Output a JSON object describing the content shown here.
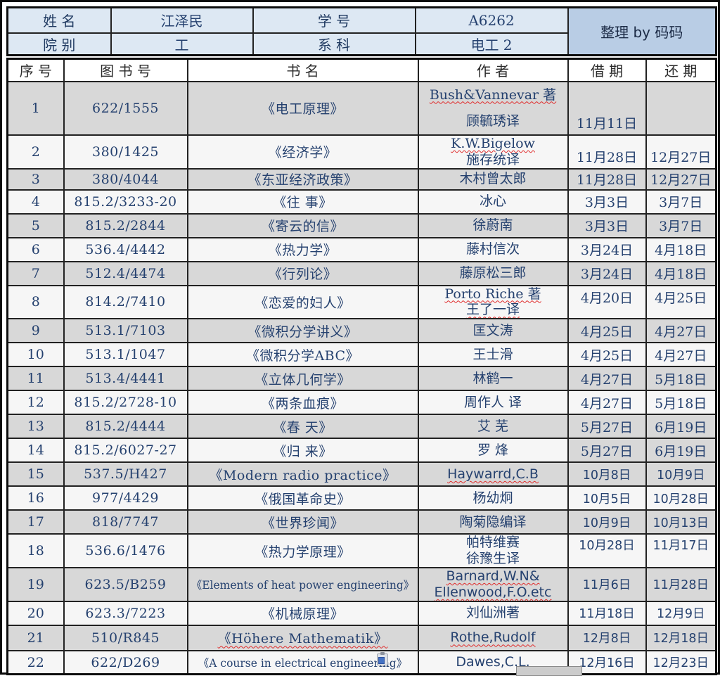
{
  "header": {
    "name_label": "姓 名",
    "name_value": "江泽民",
    "id_label": "学 号",
    "id_value": "A6262",
    "dept_label": "院 别",
    "dept_value": "工",
    "major_label": "系 科",
    "major_value": "电工 2",
    "credit": "整理 by 码码"
  },
  "columns": [
    "序 号",
    "图 书 号",
    "书 名",
    "作 者",
    "借 期",
    "还 期"
  ],
  "rows": [
    {
      "no": "1",
      "book_no": "622/1555",
      "title": "《电工原理》",
      "title_squiggle": false,
      "authors": [
        {
          "text": "Bush&Vannevar 著",
          "squiggle": true
        },
        {
          "text": "顾毓琇译",
          "squiggle": false
        }
      ],
      "borrow": "11月11日",
      "return": ""
    },
    {
      "no": "2",
      "book_no": "380/1425",
      "title": "《经济学》",
      "title_squiggle": false,
      "authors": [
        {
          "text": "K.W.Bigelow",
          "squiggle": true
        },
        {
          "text": "施存统译",
          "squiggle": false
        }
      ],
      "borrow": "11月28日",
      "return": "12月27日"
    },
    {
      "no": "3",
      "book_no": "380/4044",
      "title": "《东亚经济政策》",
      "title_squiggle": false,
      "authors": [
        {
          "text": "木村曾太郎",
          "squiggle": false
        }
      ],
      "borrow": "11月28日",
      "return": "12月27日"
    },
    {
      "no": "4",
      "book_no": "815.2/3233-20",
      "title": "《往 事》",
      "title_squiggle": false,
      "authors": [
        {
          "text": "冰心",
          "squiggle": false
        }
      ],
      "borrow": "3月3日",
      "return": "3月7日"
    },
    {
      "no": "5",
      "book_no": "815.2/2844",
      "title": "《寄云的信》",
      "title_squiggle": false,
      "authors": [
        {
          "text": "徐蔚南",
          "squiggle": false
        }
      ],
      "borrow": "3月3日",
      "return": "3月7日"
    },
    {
      "no": "6",
      "book_no": "536.4/4442",
      "title": "《热力学》",
      "title_squiggle": false,
      "authors": [
        {
          "text": "藤村信次",
          "squiggle": false
        }
      ],
      "borrow": "3月24日",
      "return": "4月18日"
    },
    {
      "no": "7",
      "book_no": "512.4/4474",
      "title": "《行列论》",
      "title_squiggle": false,
      "authors": [
        {
          "text": "藤原松三郎",
          "squiggle": false
        }
      ],
      "borrow": "3月24日",
      "return": "4月18日"
    },
    {
      "no": "8",
      "book_no": "814.2/7410",
      "title": "《恋爱的妇人》",
      "title_squiggle": false,
      "authors": [
        {
          "text": "Porto Riche 著",
          "squiggle": true
        },
        {
          "text": "王了一译",
          "squiggle": true
        }
      ],
      "borrow": "4月20日",
      "return": "4月25日"
    },
    {
      "no": "9",
      "book_no": "513.1/7103",
      "title": "《微积分学讲义》",
      "title_squiggle": false,
      "authors": [
        {
          "text": "匡文涛",
          "squiggle": false
        }
      ],
      "borrow": "4月25日",
      "return": "4月27日"
    },
    {
      "no": "10",
      "book_no": "513.1/1047",
      "title": "《微积分学ABC》",
      "title_squiggle": false,
      "authors": [
        {
          "text": "王士滑",
          "squiggle": false
        }
      ],
      "borrow": "4月25日",
      "return": "4月27日"
    },
    {
      "no": "11",
      "book_no": "513.4/4441",
      "title": "《立体几何学》",
      "title_squiggle": false,
      "authors": [
        {
          "text": "林鹤一",
          "squiggle": false
        }
      ],
      "borrow": "4月27日",
      "return": "5月18日"
    },
    {
      "no": "12",
      "book_no": "815.2/2728-10",
      "title": "《两条血痕》",
      "title_squiggle": false,
      "authors": [
        {
          "text": "周作人 译",
          "squiggle": false
        }
      ],
      "borrow": "4月27日",
      "return": "5月18日"
    },
    {
      "no": "13",
      "book_no": "815.2/4444",
      "title": "《春 天》",
      "title_squiggle": false,
      "authors": [
        {
          "text": "艾 芜",
          "squiggle": false
        }
      ],
      "borrow": "5月27日",
      "return": "6月19日"
    },
    {
      "no": "14",
      "book_no": "815.2/6027-27",
      "title": "《归 来》",
      "title_squiggle": false,
      "authors": [
        {
          "text": "罗 烽",
          "squiggle": false
        }
      ],
      "borrow": "5月27日",
      "return": "6月19日"
    },
    {
      "no": "15",
      "book_no": "537.5/H427",
      "title": "《Modern radio practice》",
      "title_squiggle": false,
      "authors": [
        {
          "text": "Haywarrd,C.B",
          "squiggle": true
        }
      ],
      "borrow": "10月8日",
      "return": "10月9日"
    },
    {
      "no": "16",
      "book_no": "977/4429",
      "title": "《俄国革命史》",
      "title_squiggle": false,
      "authors": [
        {
          "text": "杨幼炯",
          "squiggle": false
        }
      ],
      "borrow": "10月5日",
      "return": "10月28日"
    },
    {
      "no": "17",
      "book_no": "818/7747",
      "title": "《世界珍闻》",
      "title_squiggle": false,
      "authors": [
        {
          "text": "陶菊隐编译",
          "squiggle": false
        }
      ],
      "borrow": "10月9日",
      "return": "10月13日"
    },
    {
      "no": "18",
      "book_no": "536.6/1476",
      "title": "《热力学原理》",
      "title_squiggle": false,
      "authors": [
        {
          "text": "帕特维赛",
          "squiggle": false
        },
        {
          "text": "徐豫生译",
          "squiggle": false
        }
      ],
      "borrow": "10月28日",
      "return": "11月17日"
    },
    {
      "no": "19",
      "book_no": "623.5/B259",
      "title": "《Elements of heat power engineering》",
      "title_squiggle": false,
      "authors": [
        {
          "text": "Barnard,W.N&",
          "squiggle": true
        },
        {
          "text": "Ellenwood,F.O.etc",
          "squiggle": true
        }
      ],
      "borrow": "11月6日",
      "return": "11月28日"
    },
    {
      "no": "20",
      "book_no": "623.3/7223",
      "title": "《机械原理》",
      "title_squiggle": false,
      "authors": [
        {
          "text": "刘仙洲著",
          "squiggle": false
        }
      ],
      "borrow": "11月18日",
      "return": "12月9日"
    },
    {
      "no": "21",
      "book_no": "510/R845",
      "title": "《Höhere Mathematik》",
      "title_squiggle": true,
      "authors": [
        {
          "text": "Rothe,Rudolf",
          "squiggle": true
        }
      ],
      "borrow": "12月8日",
      "return": "12月18日"
    },
    {
      "no": "22",
      "book_no": "622/D269",
      "title": "《A course in electrical engineering》",
      "title_squiggle": false,
      "authors": [
        {
          "text": "Dawes,C.L.",
          "squiggle": false
        }
      ],
      "borrow": "12月16日",
      "return": "12月23日"
    }
  ],
  "colors": {
    "header_fill": "#dde8f3",
    "credit_fill": "#b9cde5",
    "odd_row_fill": "#d8d8d8",
    "even_row_fill": "#f6f6f6",
    "text_navy": "#25416f",
    "grid": "#222222",
    "squiggle_red": "#e02b2b"
  }
}
